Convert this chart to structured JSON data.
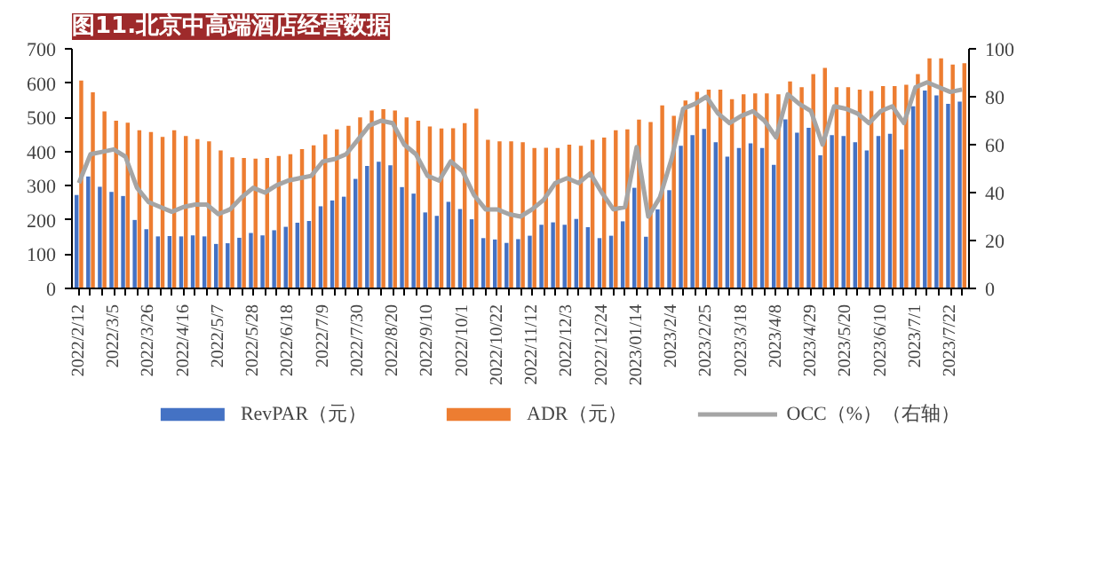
{
  "chart_data": {
    "type": "bar",
    "title": "图11.北京中高端酒店经营数据",
    "categories": [
      "2022/2/12",
      null,
      null,
      "2022/3/5",
      null,
      null,
      "2022/3/26",
      null,
      null,
      "2022/4/16",
      null,
      null,
      "2022/5/7",
      null,
      null,
      "2022/5/28",
      null,
      null,
      "2022/6/18",
      null,
      null,
      "2022/7/9",
      null,
      null,
      "2022/7/30",
      null,
      null,
      "2022/8/20",
      null,
      null,
      "2022/9/10",
      null,
      null,
      "2022/10/1",
      null,
      null,
      "2022/10/22",
      null,
      null,
      "2022/11/12",
      null,
      null,
      "2022/12/3",
      null,
      null,
      "2022/12/24",
      null,
      null,
      "2023/01/14",
      null,
      null,
      "2023/2/4",
      null,
      null,
      "2023/2/25",
      null,
      null,
      "2023/3/18",
      null,
      null,
      "2023/4/8",
      null,
      null,
      "2023/4/29",
      null,
      null,
      "2023/5/20",
      null,
      null,
      "2023/6/10",
      null,
      null,
      "2023/7/1",
      null,
      null,
      "2023/7/22",
      null
    ],
    "series": [
      {
        "name": "RevPAR（元）",
        "color": "#4472c4",
        "values": [
          273,
          327,
          297,
          282,
          270,
          200,
          173,
          152,
          153,
          152,
          155,
          152,
          130,
          132,
          148,
          162,
          155,
          170,
          180,
          192,
          197,
          240,
          257,
          268,
          320,
          358,
          370,
          360,
          296,
          277,
          222,
          212,
          253,
          232,
          202,
          147,
          143,
          133,
          144,
          154,
          186,
          193,
          186,
          203,
          179,
          147,
          154,
          196,
          294,
          151,
          231,
          287,
          417,
          448,
          466,
          427,
          385,
          410,
          424,
          410,
          361,
          494,
          455,
          469,
          389,
          448,
          445,
          427,
          403,
          445,
          452,
          406,
          532,
          578,
          564,
          539,
          546
        ]
      },
      {
        "name": "ADR（元）",
        "color": "#ed7d31",
        "values": [
          607,
          573,
          517,
          490,
          484,
          462,
          457,
          443,
          462,
          445,
          436,
          430,
          403,
          383,
          381,
          379,
          381,
          387,
          392,
          407,
          418,
          450,
          465,
          475,
          500,
          520,
          524,
          520,
          500,
          490,
          473,
          467,
          468,
          483,
          525,
          434,
          430,
          430,
          427,
          410,
          411,
          410,
          420,
          417,
          434,
          441,
          462,
          465,
          493,
          486,
          535,
          504,
          549,
          574,
          581,
          581,
          553,
          567,
          570,
          570,
          567,
          605,
          588,
          626,
          644,
          588,
          588,
          581,
          577,
          591,
          591,
          595,
          626,
          672,
          672,
          654,
          658
        ]
      },
      {
        "name": "OCC（%）（右轴）",
        "type": "line",
        "axis": "y2",
        "color": "#a5a5a5",
        "values": [
          44,
          56,
          57,
          58,
          55,
          42,
          36,
          34,
          32,
          34,
          35,
          35,
          31,
          33,
          38,
          42,
          40,
          43,
          45,
          46,
          47,
          53,
          54,
          56,
          62,
          68,
          70,
          69,
          60,
          56,
          47,
          45,
          53,
          49,
          39,
          33,
          33,
          31,
          30,
          33,
          37,
          44,
          46,
          44,
          48,
          40,
          33,
          34,
          59,
          30,
          38,
          54,
          75,
          77,
          80,
          73,
          69,
          72,
          74,
          70,
          63,
          81,
          77,
          74,
          60,
          76,
          75,
          73,
          69,
          74,
          76,
          69,
          84,
          86,
          84,
          82,
          83
        ]
      }
    ],
    "ylim": [
      0,
      700
    ],
    "yticks": [
      0,
      100,
      200,
      300,
      400,
      500,
      600,
      700
    ],
    "y2lim": [
      0,
      100
    ],
    "y2ticks": [
      0,
      20,
      40,
      60,
      80,
      100
    ],
    "legend": "bottom",
    "line_style": "solid"
  }
}
